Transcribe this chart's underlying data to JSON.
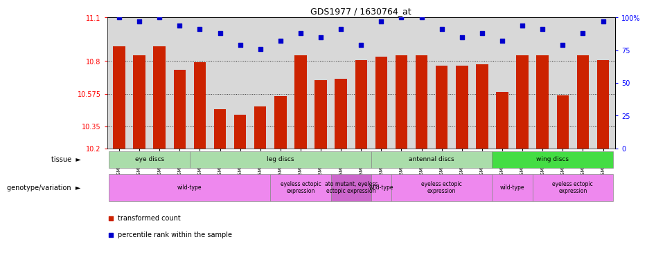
{
  "title": "GDS1977 / 1630764_at",
  "samples": [
    "GSM91570",
    "GSM91585",
    "GSM91609",
    "GSM91616",
    "GSM91617",
    "GSM91618",
    "GSM91619",
    "GSM91478",
    "GSM91479",
    "GSM91480",
    "GSM91472",
    "GSM91473",
    "GSM91474",
    "GSM91484",
    "GSM91491",
    "GSM91515",
    "GSM91475",
    "GSM91476",
    "GSM91477",
    "GSM91620",
    "GSM91621",
    "GSM91622",
    "GSM91481",
    "GSM91482",
    "GSM91483"
  ],
  "bar_values": [
    10.9,
    10.84,
    10.9,
    10.74,
    10.79,
    10.47,
    10.43,
    10.49,
    10.56,
    10.84,
    10.67,
    10.68,
    10.805,
    10.83,
    10.84,
    10.84,
    10.77,
    10.77,
    10.78,
    10.59,
    10.84,
    10.84,
    10.565,
    10.84,
    10.805
  ],
  "blue_values": [
    100,
    97,
    100,
    94,
    91,
    88,
    79,
    76,
    82,
    88,
    85,
    91,
    79,
    97,
    100,
    100,
    91,
    85,
    88,
    82,
    94,
    91,
    79,
    88,
    97
  ],
  "ymin": 10.2,
  "ymax": 11.1,
  "yticks_left": [
    10.2,
    10.35,
    10.575,
    10.8,
    11.1
  ],
  "ytick_labels_left": [
    "10.2",
    "10.35",
    "10.575",
    "10.8",
    "11.1"
  ],
  "yticks_right": [
    0,
    25,
    50,
    75,
    100
  ],
  "ytick_labels_right": [
    "0",
    "25",
    "50",
    "75",
    "100%"
  ],
  "bar_color": "#cc2200",
  "dot_color": "#0000cc",
  "hgrid_lines": [
    10.35,
    10.575,
    10.8
  ],
  "tissue_groups": [
    {
      "label": "eye discs",
      "start": 0,
      "end": 3,
      "color": "#aaddaa"
    },
    {
      "label": "leg discs",
      "start": 4,
      "end": 12,
      "color": "#aaddaa"
    },
    {
      "label": "antennal discs",
      "start": 13,
      "end": 18,
      "color": "#aaddaa"
    },
    {
      "label": "wing discs",
      "start": 19,
      "end": 24,
      "color": "#44dd44"
    }
  ],
  "genotype_groups": [
    {
      "label": "wild-type",
      "start": 0,
      "end": 7,
      "color": "#ee88ee"
    },
    {
      "label": "eyeless ectopic\nexpression",
      "start": 8,
      "end": 10,
      "color": "#ee88ee"
    },
    {
      "label": "ato mutant, eyeless\nectopic expression",
      "start": 11,
      "end": 12,
      "color": "#cc66cc"
    },
    {
      "label": "wild-type",
      "start": 13,
      "end": 13,
      "color": "#ee88ee"
    },
    {
      "label": "eyeless ectopic\nexpression",
      "start": 14,
      "end": 18,
      "color": "#ee88ee"
    },
    {
      "label": "wild-type",
      "start": 19,
      "end": 20,
      "color": "#ee88ee"
    },
    {
      "label": "eyeless ectopic\nexpression",
      "start": 21,
      "end": 24,
      "color": "#ee88ee"
    }
  ],
  "legend_bar_color": "#cc2200",
  "legend_dot_color": "#0000cc",
  "legend_bar_label": "transformed count",
  "legend_dot_label": "percentile rank within the sample"
}
